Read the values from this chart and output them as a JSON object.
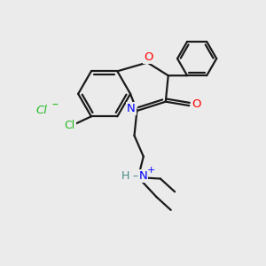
{
  "bg_color": "#EBEBEB",
  "bond_color": "#1a1a1a",
  "bond_width": 1.6,
  "atom_colors": {
    "O": "#FF0000",
    "N": "#0000FF",
    "Cl_sub": "#22BB22",
    "Cl_ion": "#22BB22",
    "H": "#4a8a8a",
    "plus": "#0000FF"
  },
  "figsize": [
    3.0,
    3.0
  ],
  "dpi": 100
}
